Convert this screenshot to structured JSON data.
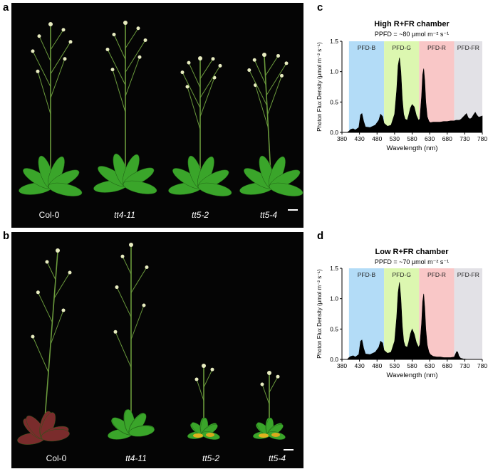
{
  "panels": {
    "a": {
      "letter": "a",
      "labels": [
        {
          "text": "Col-0",
          "italic": false
        },
        {
          "text": "tt4-11",
          "italic": true
        },
        {
          "text": "tt5-2",
          "italic": true
        },
        {
          "text": "tt5-4",
          "italic": true
        }
      ]
    },
    "b": {
      "letter": "b",
      "labels": [
        {
          "text": "Col-0",
          "italic": false
        },
        {
          "text": "tt4-11",
          "italic": true
        },
        {
          "text": "tt5-2",
          "italic": true
        },
        {
          "text": "tt5-4",
          "italic": true
        }
      ]
    },
    "c": {
      "letter": "c"
    },
    "d": {
      "letter": "d"
    }
  },
  "colors": {
    "photo_bg": "#050505",
    "leaf_green": "#3aa52a",
    "leaf_red": "#7a2c2c",
    "band_B": "#b3dcf7",
    "band_G": "#dcf7b0",
    "band_R": "#f9c7c7",
    "band_FR": "#e2e1e6"
  },
  "chart_data": [
    {
      "type": "area",
      "title": "High R+FR chamber",
      "subtitle": "PPFD = ~80 μmol m⁻² s⁻¹",
      "xlabel": "Wavelength (nm)",
      "ylabel": "Photon Flux Density (μmol m⁻² s⁻¹)",
      "xlim": [
        380,
        780
      ],
      "ylim": [
        0,
        1.5
      ],
      "xticks": [
        "380",
        "430",
        "480",
        "530",
        "580",
        "630",
        "680",
        "730",
        "780"
      ],
      "yticks": [
        "0.0",
        "0.5",
        "1.0",
        "1.5"
      ],
      "bands": [
        {
          "label": "PFD-B",
          "from": 400,
          "to": 500,
          "color": "#b3dcf7"
        },
        {
          "label": "PFD-G",
          "from": 500,
          "to": 600,
          "color": "#dcf7b0"
        },
        {
          "label": "PFD-R",
          "from": 600,
          "to": 700,
          "color": "#f9c7c7"
        },
        {
          "label": "PFD-FR",
          "from": 700,
          "to": 780,
          "color": "#e2e1e6"
        }
      ],
      "x": [
        380,
        395,
        400,
        405,
        412,
        418,
        428,
        433,
        437,
        442,
        447,
        460,
        475,
        485,
        490,
        496,
        500,
        510,
        520,
        530,
        536,
        540,
        544,
        548,
        552,
        556,
        560,
        566,
        570,
        575,
        580,
        586,
        592,
        598,
        602,
        607,
        610,
        613,
        616,
        619,
        623,
        628,
        632,
        640,
        650,
        660,
        670,
        680,
        690,
        700,
        705,
        710,
        715,
        720,
        730,
        735,
        740,
        745,
        750,
        755,
        760,
        765,
        770,
        780
      ],
      "y": [
        0.0,
        0.0,
        0.02,
        0.05,
        0.06,
        0.04,
        0.08,
        0.29,
        0.31,
        0.18,
        0.09,
        0.08,
        0.12,
        0.2,
        0.3,
        0.26,
        0.15,
        0.1,
        0.12,
        0.3,
        0.7,
        1.1,
        1.23,
        1.0,
        0.55,
        0.3,
        0.22,
        0.2,
        0.28,
        0.4,
        0.46,
        0.42,
        0.28,
        0.2,
        0.22,
        0.6,
        0.95,
        1.05,
        0.85,
        0.5,
        0.26,
        0.18,
        0.16,
        0.17,
        0.17,
        0.17,
        0.18,
        0.18,
        0.19,
        0.19,
        0.2,
        0.2,
        0.2,
        0.22,
        0.28,
        0.31,
        0.24,
        0.22,
        0.24,
        0.29,
        0.33,
        0.28,
        0.25,
        0.27
      ]
    },
    {
      "type": "area",
      "title": "Low R+FR chamber",
      "subtitle": "PPFD = ~70 μmol m⁻² s⁻¹",
      "xlabel": "Wavelength (nm)",
      "ylabel": "Photon Flux Density (μmol m⁻² s⁻¹)",
      "xlim": [
        380,
        780
      ],
      "ylim": [
        0,
        1.5
      ],
      "xticks": [
        "380",
        "430",
        "480",
        "530",
        "580",
        "630",
        "680",
        "730",
        "780"
      ],
      "yticks": [
        "0.0",
        "0.5",
        "1.0",
        "1.5"
      ],
      "bands": [
        {
          "label": "PFD-B",
          "from": 400,
          "to": 500,
          "color": "#b3dcf7"
        },
        {
          "label": "PFD-G",
          "from": 500,
          "to": 600,
          "color": "#dcf7b0"
        },
        {
          "label": "PFD-R",
          "from": 600,
          "to": 700,
          "color": "#f9c7c7"
        },
        {
          "label": "PFD-FR",
          "from": 700,
          "to": 780,
          "color": "#e2e1e6"
        }
      ],
      "x": [
        380,
        395,
        400,
        405,
        412,
        418,
        428,
        433,
        437,
        442,
        447,
        460,
        475,
        485,
        490,
        496,
        500,
        510,
        520,
        530,
        536,
        540,
        544,
        548,
        552,
        556,
        560,
        566,
        570,
        575,
        580,
        586,
        592,
        598,
        602,
        607,
        610,
        613,
        616,
        619,
        623,
        628,
        632,
        640,
        650,
        660,
        670,
        680,
        690,
        700,
        703,
        707,
        710,
        713,
        718,
        725,
        740,
        760,
        780
      ],
      "y": [
        0.0,
        0.0,
        0.03,
        0.05,
        0.06,
        0.04,
        0.08,
        0.3,
        0.32,
        0.18,
        0.09,
        0.08,
        0.12,
        0.2,
        0.3,
        0.27,
        0.15,
        0.1,
        0.12,
        0.3,
        0.7,
        1.1,
        1.27,
        1.0,
        0.55,
        0.3,
        0.22,
        0.2,
        0.28,
        0.42,
        0.5,
        0.42,
        0.28,
        0.2,
        0.24,
        0.6,
        0.95,
        1.08,
        0.85,
        0.5,
        0.24,
        0.12,
        0.08,
        0.05,
        0.04,
        0.04,
        0.03,
        0.03,
        0.03,
        0.04,
        0.08,
        0.13,
        0.12,
        0.06,
        0.02,
        0.01,
        0.0,
        0.0,
        0.0
      ]
    }
  ]
}
